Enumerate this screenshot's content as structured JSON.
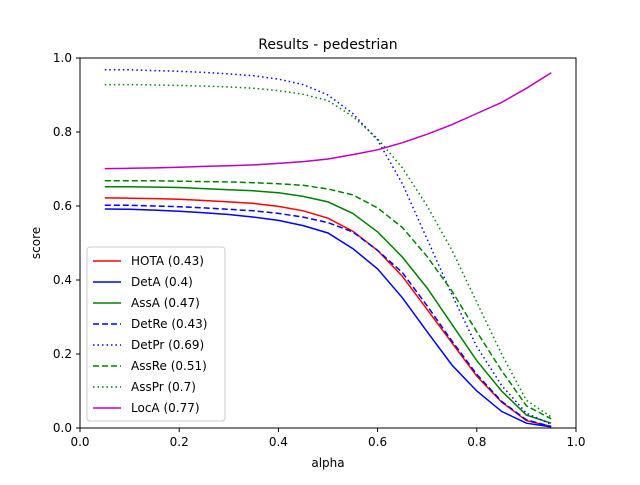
{
  "chart_data": {
    "type": "line",
    "title": "Results - pedestrian",
    "xlabel": "alpha",
    "ylabel": "score",
    "xlim": [
      0.0,
      1.0
    ],
    "ylim": [
      0.0,
      1.0
    ],
    "xticks": [
      "0.0",
      "0.2",
      "0.4",
      "0.6",
      "0.8",
      "1.0"
    ],
    "yticks": [
      "0.0",
      "0.2",
      "0.4",
      "0.6",
      "0.8",
      "1.0"
    ],
    "grid": false,
    "legend_position": "lower-left",
    "x": [
      0.05,
      0.1,
      0.15,
      0.2,
      0.25,
      0.3,
      0.35,
      0.4,
      0.45,
      0.5,
      0.55,
      0.6,
      0.65,
      0.7,
      0.75,
      0.8,
      0.85,
      0.9,
      0.95
    ],
    "series": [
      {
        "name": "HOTA (0.43)",
        "color": "#ff0000",
        "dash": "solid",
        "values": [
          0.622,
          0.621,
          0.62,
          0.618,
          0.615,
          0.611,
          0.607,
          0.599,
          0.587,
          0.567,
          0.532,
          0.48,
          0.41,
          0.32,
          0.23,
          0.14,
          0.07,
          0.02,
          0.004
        ]
      },
      {
        "name": "DetA (0.4)",
        "color": "#0000ff",
        "dash": "solid",
        "values": [
          0.592,
          0.591,
          0.589,
          0.586,
          0.582,
          0.577,
          0.57,
          0.561,
          0.547,
          0.527,
          0.485,
          0.43,
          0.352,
          0.26,
          0.17,
          0.1,
          0.045,
          0.013,
          0.003
        ]
      },
      {
        "name": "AssA (0.47)",
        "color": "#008000",
        "dash": "solid",
        "values": [
          0.652,
          0.652,
          0.651,
          0.65,
          0.647,
          0.644,
          0.641,
          0.636,
          0.626,
          0.611,
          0.58,
          0.53,
          0.462,
          0.378,
          0.28,
          0.182,
          0.1,
          0.035,
          0.013
        ]
      },
      {
        "name": "DetRe (0.43)",
        "color": "#0000ff",
        "dash": "dashed",
        "values": [
          0.602,
          0.602,
          0.6,
          0.598,
          0.595,
          0.591,
          0.587,
          0.58,
          0.57,
          0.555,
          0.53,
          0.48,
          0.42,
          0.33,
          0.235,
          0.145,
          0.072,
          0.022,
          0.004
        ]
      },
      {
        "name": "DetPr (0.69)",
        "color": "#0000ff",
        "dash": "dotted",
        "values": [
          0.968,
          0.968,
          0.966,
          0.964,
          0.961,
          0.957,
          0.952,
          0.943,
          0.928,
          0.9,
          0.85,
          0.778,
          0.66,
          0.51,
          0.36,
          0.22,
          0.115,
          0.04,
          0.01
        ]
      },
      {
        "name": "AssRe (0.51)",
        "color": "#008000",
        "dash": "dashed",
        "values": [
          0.668,
          0.668,
          0.668,
          0.667,
          0.666,
          0.665,
          0.663,
          0.66,
          0.656,
          0.646,
          0.63,
          0.595,
          0.542,
          0.463,
          0.37,
          0.26,
          0.155,
          0.06,
          0.025
        ]
      },
      {
        "name": "AssPr (0.7)",
        "color": "#008000",
        "dash": "dotted",
        "values": [
          0.928,
          0.928,
          0.927,
          0.926,
          0.924,
          0.922,
          0.918,
          0.912,
          0.902,
          0.885,
          0.842,
          0.782,
          0.703,
          0.6,
          0.48,
          0.34,
          0.2,
          0.075,
          0.03
        ]
      },
      {
        "name": "LocA (0.77)",
        "color": "#bf00bf",
        "dash": "solid",
        "values": [
          0.701,
          0.702,
          0.703,
          0.705,
          0.707,
          0.709,
          0.711,
          0.715,
          0.72,
          0.727,
          0.739,
          0.752,
          0.771,
          0.794,
          0.82,
          0.85,
          0.88,
          0.918,
          0.96
        ]
      }
    ]
  }
}
